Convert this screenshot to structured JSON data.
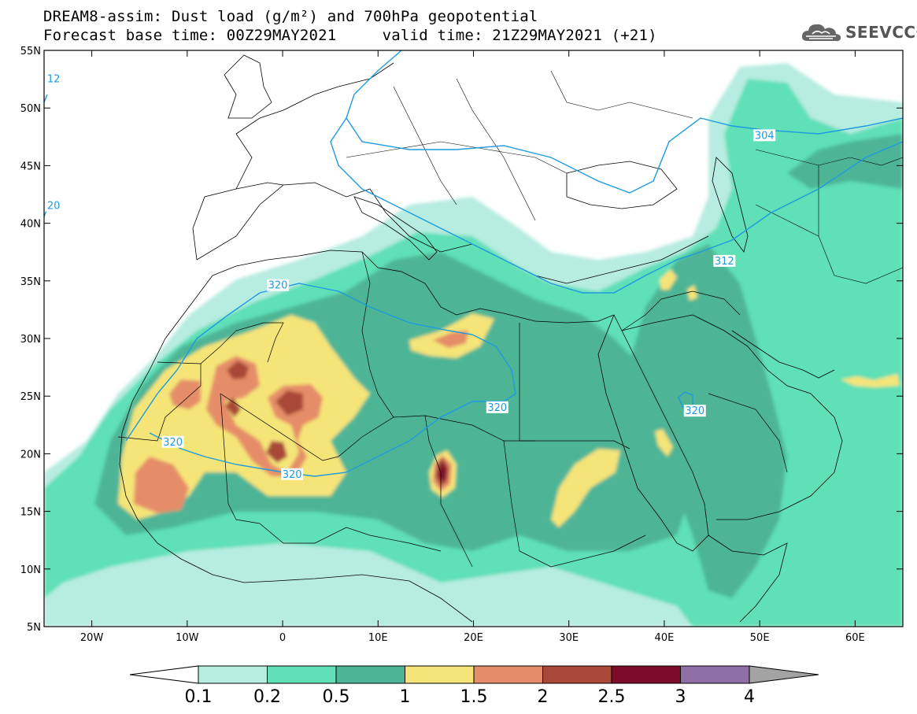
{
  "title": {
    "line1": "DREAM8-assim: Dust load (g/m²) and 700hPa geopotential",
    "line2": "Forecast base time: 00Z29MAY2021     valid time: 21Z29MAY2021 (+21)"
  },
  "logo": {
    "text": "SEEVCCC",
    "icon": "cloud-icon"
  },
  "map": {
    "lon_range": [
      -25,
      65
    ],
    "lat_range": [
      5,
      55
    ],
    "x_ticks": [
      {
        "lon": -20,
        "label": "20W"
      },
      {
        "lon": -10,
        "label": "10W"
      },
      {
        "lon": 0,
        "label": "0"
      },
      {
        "lon": 10,
        "label": "10E"
      },
      {
        "lon": 20,
        "label": "20E"
      },
      {
        "lon": 30,
        "label": "30E"
      },
      {
        "lon": 40,
        "label": "40E"
      },
      {
        "lon": 50,
        "label": "50E"
      },
      {
        "lon": 60,
        "label": "60E"
      }
    ],
    "y_ticks": [
      {
        "lat": 55,
        "label": "55N"
      },
      {
        "lat": 50,
        "label": "50N"
      },
      {
        "lat": 45,
        "label": "45N"
      },
      {
        "lat": 40,
        "label": "40N"
      },
      {
        "lat": 35,
        "label": "35N"
      },
      {
        "lat": 30,
        "label": "30N"
      },
      {
        "lat": 25,
        "label": "25N"
      },
      {
        "lat": 20,
        "label": "20N"
      },
      {
        "lat": 15,
        "label": "15N"
      },
      {
        "lat": 10,
        "label": "10N"
      },
      {
        "lat": 5,
        "label": "5N"
      }
    ],
    "contour_color": "#1e9be0",
    "contour_labels": [
      {
        "text": "320",
        "lon": -0.5,
        "lat": 34.6
      },
      {
        "text": "320",
        "lon": -11.5,
        "lat": 21.0
      },
      {
        "text": "320",
        "lon": 1.0,
        "lat": 18.2
      },
      {
        "text": "320",
        "lon": 22.5,
        "lat": 24.0
      },
      {
        "text": "320",
        "lon": 43.2,
        "lat": 23.7
      },
      {
        "text": "312",
        "lon": 46.3,
        "lat": 36.7
      },
      {
        "text": "304",
        "lon": 50.5,
        "lat": 47.6
      },
      {
        "text": "12",
        "lon": -24.0,
        "lat": 52.5
      },
      {
        "text": "20",
        "lon": -24.0,
        "lat": 41.5
      }
    ]
  },
  "colorbar": {
    "levels": [
      "0.1",
      "0.2",
      "0.5",
      "1",
      "1.5",
      "2",
      "2.5",
      "3",
      "4"
    ],
    "colors": [
      "#b7ece0",
      "#5fe0b6",
      "#4db596",
      "#f5e478",
      "#e58d68",
      "#a84838",
      "#7c0c2a",
      "#8f6fa6"
    ],
    "under_color": "#ffffff",
    "over_color": "#a3a3a3"
  },
  "dust_colors": {
    "l1": "#b7ece0",
    "l2": "#5fe0b6",
    "l3": "#4db596",
    "l4": "#f5e478",
    "l5": "#e58d68",
    "l6": "#a84838",
    "l7": "#7c0c2a"
  }
}
